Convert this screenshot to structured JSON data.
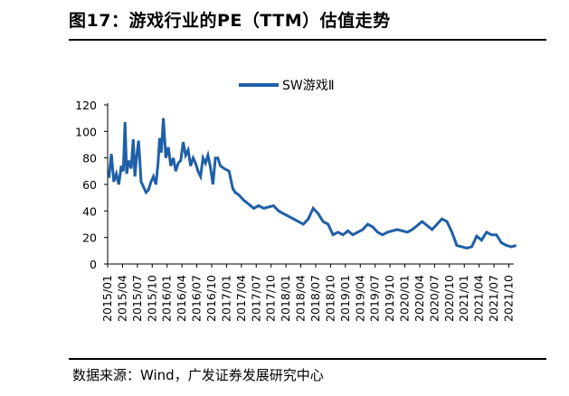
{
  "figure": {
    "title": "图17：游戏行业的PE（TTM）估值走势",
    "source": "数据来源：Wind，广发证券发展研究中心"
  },
  "colors": {
    "series": "#1f5fa8",
    "axis": "#000000"
  },
  "chart_data": {
    "type": "line",
    "title": "",
    "xlabel": "",
    "ylabel": "",
    "ylim": [
      0,
      120
    ],
    "yticks": [
      0,
      20,
      40,
      60,
      80,
      100,
      120
    ],
    "grid": false,
    "legend_placement": "top-center",
    "xtick_labels": [
      "2015/01",
      "2015/04",
      "2015/07",
      "2015/10",
      "2016/01",
      "2016/04",
      "2016/07",
      "2016/10",
      "2017/01",
      "2017/04",
      "2017/07",
      "2017/10",
      "2018/01",
      "2018/04",
      "2018/07",
      "2018/10",
      "2019/01",
      "2019/04",
      "2019/07",
      "2019/10",
      "2020/01",
      "2020/04",
      "2020/07",
      "2020/10",
      "2021/01",
      "2021/04",
      "2021/07",
      "2021/10"
    ],
    "series": [
      {
        "name": "SW游戏Ⅱ",
        "x": [
          "2015/01",
          "2015/01",
          "2015/02",
          "2015/02",
          "2015/03",
          "2015/03",
          "2015/04",
          "2015/04",
          "2015/04",
          "2015/05",
          "2015/05",
          "2015/06",
          "2015/06",
          "2015/06",
          "2015/07",
          "2015/07",
          "2015/08",
          "2015/08",
          "2015/09",
          "2015/09",
          "2015/10",
          "2015/10",
          "2015/11",
          "2015/11",
          "2015/11",
          "2015/12",
          "2015/12",
          "2016/01",
          "2016/01",
          "2016/02",
          "2016/02",
          "2016/03",
          "2016/03",
          "2016/04",
          "2016/04",
          "2016/05",
          "2016/05",
          "2016/06",
          "2016/06",
          "2016/07",
          "2016/07",
          "2016/08",
          "2016/08",
          "2016/09",
          "2016/09",
          "2016/10",
          "2016/10",
          "2016/11",
          "2016/11",
          "2016/12",
          "2017/01",
          "2017/02",
          "2017/02",
          "2017/03",
          "2017/04",
          "2017/05",
          "2017/06",
          "2017/07",
          "2017/08",
          "2017/09",
          "2017/10",
          "2017/11",
          "2017/12",
          "2018/01",
          "2018/02",
          "2018/03",
          "2018/04",
          "2018/05",
          "2018/06",
          "2018/07",
          "2018/08",
          "2018/09",
          "2018/10",
          "2018/11",
          "2018/12",
          "2019/01",
          "2019/02",
          "2019/03",
          "2019/04",
          "2019/05",
          "2019/06",
          "2019/07",
          "2019/08",
          "2019/09",
          "2019/10",
          "2019/11",
          "2019/12",
          "2020/01",
          "2020/02",
          "2020/03",
          "2020/04",
          "2020/05",
          "2020/06",
          "2020/07",
          "2020/08",
          "2020/09",
          "2020/10",
          "2020/11",
          "2020/12",
          "2021/01",
          "2021/02",
          "2021/03",
          "2021/04",
          "2021/05",
          "2021/06",
          "2021/07",
          "2021/08",
          "2021/09",
          "2021/10",
          "2021/11"
        ],
        "values": [
          65,
          83,
          62,
          68,
          60,
          74,
          70,
          107,
          68,
          78,
          72,
          94,
          66,
          80,
          93,
          62,
          58,
          54,
          56,
          62,
          66,
          60,
          76,
          95,
          84,
          110,
          80,
          88,
          74,
          80,
          70,
          76,
          78,
          92,
          82,
          86,
          74,
          80,
          76,
          70,
          66,
          80,
          76,
          82,
          73,
          60,
          80,
          80,
          74,
          72,
          70,
          57,
          54,
          52,
          48,
          45,
          42,
          44,
          42,
          43,
          44,
          40,
          38,
          36,
          34,
          32,
          30,
          34,
          42,
          38,
          32,
          30,
          22,
          24,
          22,
          25,
          22,
          24,
          26,
          30,
          28,
          24,
          22,
          24,
          25,
          26,
          25,
          24,
          26,
          29,
          32,
          29,
          26,
          30,
          34,
          32,
          24,
          14,
          13,
          12,
          13,
          21,
          18,
          24,
          22,
          22,
          16,
          14,
          13,
          14
        ]
      }
    ]
  }
}
